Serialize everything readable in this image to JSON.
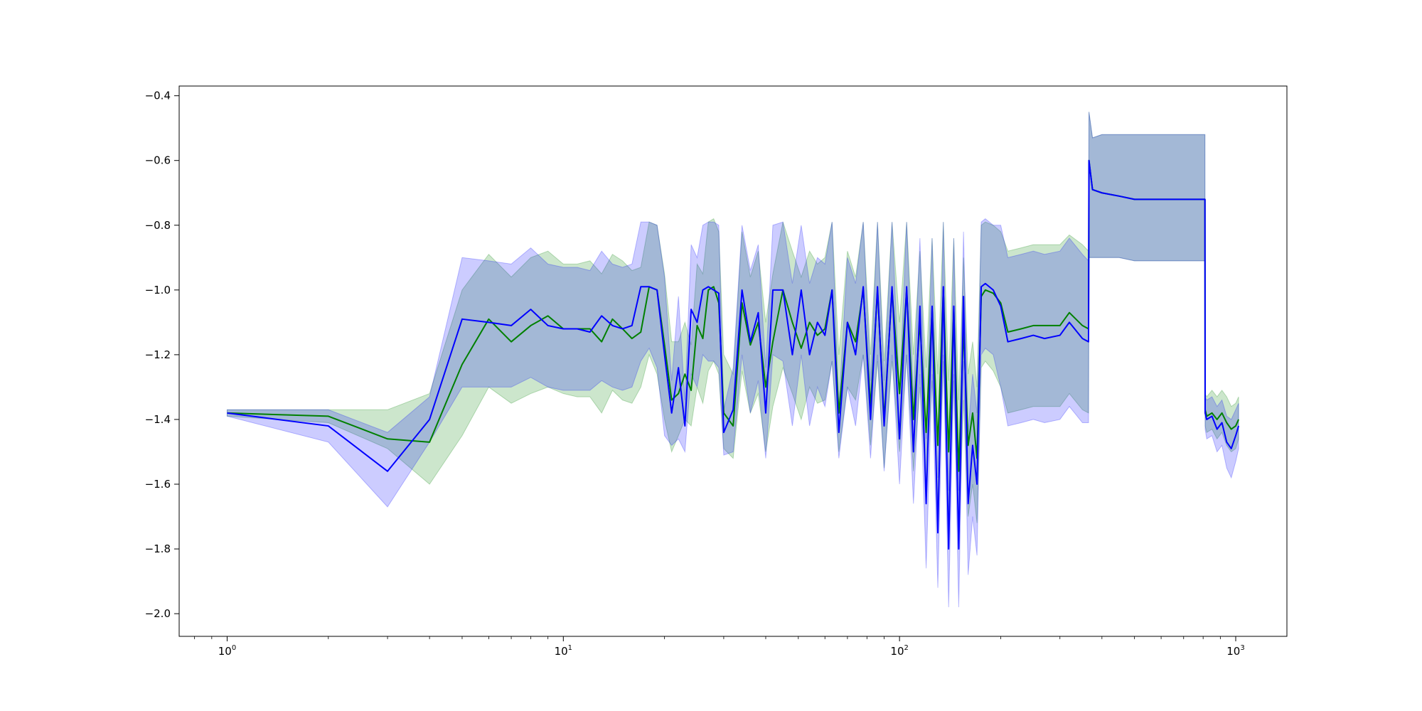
{
  "chart_data": {
    "type": "line",
    "title": "",
    "xlabel": "",
    "ylabel": "",
    "xscale": "log",
    "xlim": [
      0.72,
      1420
    ],
    "ylim": [
      -2.07,
      -0.37
    ],
    "grid": false,
    "legend": "none",
    "x_ticks": [
      {
        "value": 1,
        "base": "10",
        "exp": "0"
      },
      {
        "value": 10,
        "base": "10",
        "exp": "1"
      },
      {
        "value": 100,
        "base": "10",
        "exp": "2"
      },
      {
        "value": 1000,
        "base": "10",
        "exp": "3"
      }
    ],
    "y_ticks": [
      {
        "value": -0.4,
        "label": "−0.4"
      },
      {
        "value": -0.6,
        "label": "−0.6"
      },
      {
        "value": -0.8,
        "label": "−0.8"
      },
      {
        "value": -1.0,
        "label": "−1.0"
      },
      {
        "value": -1.2,
        "label": "−1.2"
      },
      {
        "value": -1.4,
        "label": "−1.4"
      },
      {
        "value": -1.6,
        "label": "−1.6"
      },
      {
        "value": -1.8,
        "label": "−1.8"
      },
      {
        "value": -2.0,
        "label": "−2.0"
      }
    ],
    "series": [
      {
        "color": "#008000",
        "band_color": "#008000",
        "band_opacity": 0.2,
        "x": [
          1,
          2,
          3,
          4,
          5,
          6,
          7,
          8,
          9,
          10,
          11,
          12,
          13,
          14,
          15,
          16,
          17,
          18,
          19,
          20,
          21,
          22,
          23,
          24,
          25,
          26,
          27,
          28,
          29,
          30,
          32,
          34,
          36,
          38,
          40,
          42,
          45,
          48,
          51,
          54,
          57,
          60,
          63,
          66,
          70,
          74,
          78,
          82,
          86,
          90,
          95,
          100,
          105,
          110,
          115,
          120,
          125,
          130,
          135,
          140,
          145,
          150,
          155,
          160,
          165,
          170,
          175,
          180,
          190,
          200,
          210,
          230,
          250,
          270,
          300,
          320,
          350,
          365,
          366,
          375,
          400,
          450,
          500,
          600,
          700,
          810,
          811,
          820,
          850,
          880,
          910,
          940,
          970,
          1000,
          1020
        ],
        "y": [
          -1.38,
          -1.39,
          -1.46,
          -1.47,
          -1.23,
          -1.09,
          -1.16,
          -1.11,
          -1.08,
          -1.12,
          -1.12,
          -1.12,
          -1.16,
          -1.09,
          -1.12,
          -1.15,
          -1.13,
          -0.99,
          -1.0,
          -1.17,
          -1.34,
          -1.32,
          -1.26,
          -1.31,
          -1.11,
          -1.15,
          -1.0,
          -0.99,
          -1.04,
          -1.38,
          -1.42,
          -1.04,
          -1.17,
          -1.1,
          -1.3,
          -1.16,
          -1.0,
          -1.1,
          -1.18,
          -1.1,
          -1.14,
          -1.12,
          -1.0,
          -1.38,
          -1.1,
          -1.16,
          -1.0,
          -1.36,
          -1.0,
          -1.4,
          -1.0,
          -1.32,
          -1.0,
          -1.4,
          -1.1,
          -1.44,
          -1.06,
          -1.48,
          -1.0,
          -1.5,
          -1.06,
          -1.56,
          -1.12,
          -1.48,
          -1.38,
          -1.52,
          -1.02,
          -1.0,
          -1.01,
          -1.04,
          -1.13,
          -1.12,
          -1.11,
          -1.11,
          -1.11,
          -1.07,
          -1.11,
          -1.12,
          -0.6,
          -0.69,
          -0.7,
          -0.71,
          -0.72,
          -0.72,
          -0.72,
          -0.72,
          -1.37,
          -1.39,
          -1.38,
          -1.4,
          -1.38,
          -1.41,
          -1.43,
          -1.42,
          -1.4
        ],
        "lower": [
          -1.39,
          -1.41,
          -1.49,
          -1.6,
          -1.45,
          -1.3,
          -1.35,
          -1.32,
          -1.3,
          -1.32,
          -1.33,
          -1.33,
          -1.38,
          -1.31,
          -1.34,
          -1.35,
          -1.3,
          -1.2,
          -1.26,
          -1.4,
          -1.5,
          -1.45,
          -1.4,
          -1.42,
          -1.3,
          -1.35,
          -1.25,
          -1.22,
          -1.26,
          -1.49,
          -1.52,
          -1.25,
          -1.38,
          -1.32,
          -1.5,
          -1.36,
          -1.24,
          -1.32,
          -1.4,
          -1.3,
          -1.35,
          -1.34,
          -1.22,
          -1.5,
          -1.3,
          -1.34,
          -1.2,
          -1.48,
          -1.22,
          -1.55,
          -1.22,
          -1.5,
          -1.2,
          -1.56,
          -1.3,
          -1.6,
          -1.28,
          -1.66,
          -1.22,
          -1.7,
          -1.28,
          -1.76,
          -1.34,
          -1.7,
          -1.6,
          -1.72,
          -1.24,
          -1.22,
          -1.25,
          -1.3,
          -1.38,
          -1.37,
          -1.36,
          -1.36,
          -1.36,
          -1.32,
          -1.37,
          -1.38,
          -0.9,
          -0.9,
          -0.9,
          -0.9,
          -0.91,
          -0.91,
          -0.91,
          -0.91,
          -1.42,
          -1.44,
          -1.43,
          -1.46,
          -1.44,
          -1.48,
          -1.5,
          -1.49,
          -1.46
        ],
        "upper": [
          -1.37,
          -1.37,
          -1.37,
          -1.32,
          -1.0,
          -0.89,
          -0.96,
          -0.9,
          -0.88,
          -0.92,
          -0.92,
          -0.91,
          -0.95,
          -0.89,
          -0.91,
          -0.94,
          -0.93,
          -0.79,
          -0.8,
          -0.95,
          -1.16,
          -1.16,
          -1.1,
          -1.17,
          -0.92,
          -0.95,
          -0.79,
          -0.78,
          -0.82,
          -1.2,
          -1.26,
          -0.82,
          -0.96,
          -0.88,
          -1.1,
          -0.95,
          -0.79,
          -0.88,
          -0.96,
          -0.88,
          -0.92,
          -0.9,
          -0.79,
          -1.2,
          -0.88,
          -0.96,
          -0.79,
          -1.2,
          -0.79,
          -1.22,
          -0.79,
          -1.1,
          -0.79,
          -1.2,
          -0.88,
          -1.24,
          -0.84,
          -1.26,
          -0.79,
          -1.28,
          -0.84,
          -1.34,
          -0.9,
          -1.26,
          -1.16,
          -1.3,
          -0.8,
          -0.79,
          -0.8,
          -0.82,
          -0.88,
          -0.87,
          -0.86,
          -0.86,
          -0.86,
          -0.83,
          -0.86,
          -0.88,
          -0.45,
          -0.53,
          -0.52,
          -0.52,
          -0.52,
          -0.52,
          -0.52,
          -0.52,
          -1.32,
          -1.33,
          -1.31,
          -1.33,
          -1.31,
          -1.33,
          -1.36,
          -1.35,
          -1.33
        ]
      },
      {
        "color": "#0000ff",
        "band_color": "#0000ff",
        "band_opacity": 0.2,
        "x": [
          1,
          2,
          3,
          4,
          5,
          6,
          7,
          8,
          9,
          10,
          11,
          12,
          13,
          14,
          15,
          16,
          17,
          18,
          19,
          20,
          21,
          22,
          23,
          24,
          25,
          26,
          27,
          28,
          29,
          30,
          32,
          34,
          36,
          38,
          40,
          42,
          45,
          48,
          51,
          54,
          57,
          60,
          63,
          66,
          70,
          74,
          78,
          82,
          86,
          90,
          95,
          100,
          105,
          110,
          115,
          120,
          125,
          130,
          135,
          140,
          145,
          150,
          155,
          160,
          165,
          170,
          175,
          180,
          190,
          200,
          210,
          230,
          250,
          270,
          300,
          320,
          350,
          365,
          366,
          375,
          400,
          450,
          500,
          600,
          700,
          810,
          811,
          820,
          850,
          880,
          910,
          940,
          970,
          1000,
          1020
        ],
        "y": [
          -1.38,
          -1.42,
          -1.56,
          -1.4,
          -1.09,
          -1.1,
          -1.11,
          -1.06,
          -1.11,
          -1.12,
          -1.12,
          -1.13,
          -1.08,
          -1.11,
          -1.12,
          -1.11,
          -0.99,
          -0.99,
          -1.0,
          -1.2,
          -1.38,
          -1.24,
          -1.42,
          -1.06,
          -1.1,
          -1.0,
          -0.99,
          -1.0,
          -1.01,
          -1.44,
          -1.37,
          -1.0,
          -1.16,
          -1.07,
          -1.38,
          -1.0,
          -1.0,
          -1.2,
          -1.0,
          -1.2,
          -1.1,
          -1.14,
          -1.0,
          -1.44,
          -1.1,
          -1.2,
          -0.99,
          -1.4,
          -0.99,
          -1.42,
          -0.99,
          -1.46,
          -0.99,
          -1.5,
          -1.05,
          -1.66,
          -1.05,
          -1.75,
          -0.99,
          -1.8,
          -1.05,
          -1.8,
          -1.02,
          -1.66,
          -1.48,
          -1.6,
          -0.99,
          -0.98,
          -1.0,
          -1.05,
          -1.16,
          -1.15,
          -1.14,
          -1.15,
          -1.14,
          -1.1,
          -1.15,
          -1.16,
          -0.6,
          -0.69,
          -0.7,
          -0.71,
          -0.72,
          -0.72,
          -0.72,
          -0.72,
          -1.38,
          -1.4,
          -1.39,
          -1.43,
          -1.41,
          -1.47,
          -1.49,
          -1.45,
          -1.42
        ],
        "lower": [
          -1.39,
          -1.47,
          -1.67,
          -1.47,
          -1.3,
          -1.3,
          -1.3,
          -1.27,
          -1.3,
          -1.31,
          -1.31,
          -1.31,
          -1.28,
          -1.3,
          -1.31,
          -1.3,
          -1.22,
          -1.18,
          -1.24,
          -1.45,
          -1.48,
          -1.46,
          -1.5,
          -1.26,
          -1.3,
          -1.2,
          -1.22,
          -1.22,
          -1.24,
          -1.51,
          -1.5,
          -1.2,
          -1.38,
          -1.28,
          -1.52,
          -1.2,
          -1.22,
          -1.42,
          -1.2,
          -1.42,
          -1.3,
          -1.36,
          -1.22,
          -1.52,
          -1.3,
          -1.42,
          -1.2,
          -1.52,
          -1.2,
          -1.56,
          -1.2,
          -1.6,
          -1.2,
          -1.66,
          -1.26,
          -1.86,
          -1.26,
          -1.92,
          -1.2,
          -1.98,
          -1.26,
          -1.98,
          -1.22,
          -1.88,
          -1.7,
          -1.82,
          -1.2,
          -1.18,
          -1.2,
          -1.3,
          -1.42,
          -1.41,
          -1.4,
          -1.41,
          -1.4,
          -1.36,
          -1.41,
          -1.41,
          -0.9,
          -0.9,
          -0.9,
          -0.9,
          -0.91,
          -0.91,
          -0.91,
          -0.91,
          -1.43,
          -1.46,
          -1.45,
          -1.5,
          -1.48,
          -1.55,
          -1.58,
          -1.53,
          -1.49
        ],
        "upper": [
          -1.37,
          -1.37,
          -1.44,
          -1.33,
          -0.9,
          -0.91,
          -0.92,
          -0.87,
          -0.92,
          -0.93,
          -0.93,
          -0.94,
          -0.88,
          -0.92,
          -0.93,
          -0.92,
          -0.79,
          -0.79,
          -0.8,
          -0.96,
          -1.28,
          -1.02,
          -1.34,
          -0.86,
          -0.9,
          -0.8,
          -0.79,
          -0.79,
          -0.8,
          -1.37,
          -1.24,
          -0.8,
          -0.94,
          -0.86,
          -1.24,
          -0.8,
          -0.79,
          -0.98,
          -0.8,
          -0.98,
          -0.9,
          -0.92,
          -0.79,
          -1.36,
          -0.9,
          -0.98,
          -0.79,
          -1.28,
          -0.79,
          -1.28,
          -0.79,
          -1.32,
          -0.79,
          -1.34,
          -0.84,
          -1.46,
          -0.84,
          -1.58,
          -0.79,
          -1.62,
          -0.84,
          -1.62,
          -0.82,
          -1.44,
          -1.26,
          -1.38,
          -0.79,
          -0.78,
          -0.8,
          -0.8,
          -0.9,
          -0.89,
          -0.88,
          -0.89,
          -0.88,
          -0.84,
          -0.89,
          -0.91,
          -0.45,
          -0.53,
          -0.52,
          -0.52,
          -0.52,
          -0.52,
          -0.52,
          -0.52,
          -1.33,
          -1.34,
          -1.33,
          -1.36,
          -1.34,
          -1.39,
          -1.4,
          -1.37,
          -1.35
        ]
      }
    ]
  }
}
